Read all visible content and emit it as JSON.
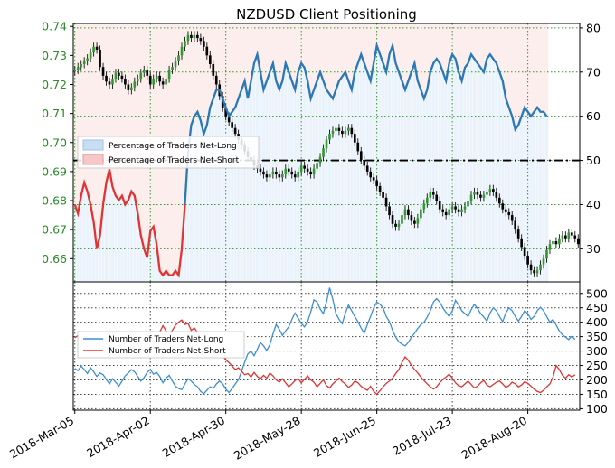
{
  "chart_data": [
    {
      "type": "candlestick+line",
      "title": "NZDUSD Client Positioning",
      "x_tick_labels": [
        "2018-Mar-05",
        "2018-Apr-02",
        "2018-Apr-30",
        "2018-May-28",
        "2018-Jun-25",
        "2018-Jul-23",
        "2018-Aug-20"
      ],
      "left_axis": {
        "label": "",
        "color": "#2a8a2a",
        "ticks": [
          "0.66",
          "0.67",
          "0.68",
          "0.69",
          "0.70",
          "0.71",
          "0.72",
          "0.73",
          "0.74"
        ],
        "ylim": [
          0.652,
          0.741
        ]
      },
      "right_axis": {
        "label": "",
        "ticks": [
          "30",
          "40",
          "50",
          "60",
          "70",
          "80"
        ],
        "ylim": [
          22.5,
          81
        ]
      },
      "legend": {
        "placement": "center-left",
        "entries": [
          "Percentage of Traders Net-Long",
          "Percentage of Traders Net-Short"
        ]
      },
      "reference_line": {
        "value": 50,
        "style": "dash-dot",
        "color": "#000000"
      },
      "price_close": [
        0.725,
        0.726,
        0.727,
        0.728,
        0.729,
        0.731,
        0.733,
        0.732,
        0.726,
        0.723,
        0.721,
        0.72,
        0.722,
        0.724,
        0.723,
        0.722,
        0.72,
        0.718,
        0.719,
        0.721,
        0.722,
        0.724,
        0.725,
        0.723,
        0.72,
        0.722,
        0.723,
        0.721,
        0.72,
        0.722,
        0.725,
        0.726,
        0.728,
        0.73,
        0.733,
        0.735,
        0.737,
        0.736,
        0.737,
        0.736,
        0.735,
        0.733,
        0.73,
        0.727,
        0.723,
        0.72,
        0.716,
        0.712,
        0.709,
        0.707,
        0.705,
        0.703,
        0.701,
        0.699,
        0.697,
        0.695,
        0.694,
        0.692,
        0.691,
        0.69,
        0.689,
        0.688,
        0.689,
        0.69,
        0.689,
        0.688,
        0.689,
        0.691,
        0.69,
        0.689,
        0.688,
        0.69,
        0.692,
        0.691,
        0.69,
        0.689,
        0.691,
        0.693,
        0.695,
        0.698,
        0.701,
        0.703,
        0.704,
        0.705,
        0.704,
        0.703,
        0.704,
        0.705,
        0.703,
        0.7,
        0.697,
        0.694,
        0.692,
        0.69,
        0.688,
        0.687,
        0.685,
        0.683,
        0.681,
        0.678,
        0.675,
        0.672,
        0.671,
        0.672,
        0.675,
        0.677,
        0.675,
        0.673,
        0.672,
        0.674,
        0.677,
        0.679,
        0.681,
        0.683,
        0.682,
        0.68,
        0.677,
        0.676,
        0.675,
        0.677,
        0.678,
        0.677,
        0.676,
        0.677,
        0.678,
        0.68,
        0.682,
        0.683,
        0.682,
        0.681,
        0.682,
        0.683,
        0.684,
        0.683,
        0.681,
        0.679,
        0.677,
        0.676,
        0.675,
        0.673,
        0.67,
        0.667,
        0.664,
        0.661,
        0.658,
        0.656,
        0.655,
        0.656,
        0.658,
        0.66,
        0.663,
        0.665,
        0.666,
        0.665,
        0.667,
        0.668,
        0.667,
        0.669,
        0.668,
        0.667,
        0.665
      ],
      "pct_net_long": [
        40,
        38,
        42,
        45,
        43,
        40,
        36,
        30,
        33,
        40,
        45,
        48,
        44,
        42,
        41,
        42,
        40,
        41,
        43,
        42,
        38,
        33,
        30,
        28,
        34,
        35,
        31,
        25,
        24,
        25,
        24,
        24,
        25,
        24,
        30,
        40,
        52,
        58,
        60,
        61,
        59,
        56,
        58,
        62,
        64,
        66,
        66,
        64,
        62,
        60,
        61,
        62,
        64,
        66,
        68,
        64,
        68,
        72,
        74,
        70,
        66,
        68,
        70,
        72,
        68,
        66,
        68,
        72,
        70,
        68,
        66,
        70,
        72,
        71,
        68,
        64,
        66,
        68,
        70,
        68,
        66,
        65,
        64,
        66,
        68,
        69,
        70,
        68,
        66,
        70,
        72,
        74,
        72,
        70,
        68,
        72,
        76,
        74,
        72,
        70,
        74,
        76,
        72,
        70,
        68,
        66,
        68,
        70,
        72,
        68,
        66,
        64,
        66,
        70,
        72,
        73,
        72,
        70,
        68,
        72,
        74,
        73,
        70,
        68,
        71,
        72,
        74,
        73,
        72,
        71,
        70,
        73,
        74,
        73,
        72,
        70,
        68,
        64,
        62,
        60,
        57,
        58,
        60,
        62,
        61,
        60,
        61,
        62,
        61,
        61,
        60
      ],
      "pct_net_short": [
        60,
        62,
        58,
        55,
        57,
        60,
        64,
        70,
        67,
        60,
        55,
        52,
        56,
        58,
        59,
        58,
        60,
        59,
        57,
        58,
        62,
        67,
        70,
        72,
        66,
        65,
        69,
        75,
        76,
        75,
        76,
        76,
        75,
        76,
        70,
        60,
        48,
        42,
        40,
        39,
        41,
        44,
        42,
        38,
        36,
        34,
        34,
        36,
        38,
        40,
        39,
        38,
        36,
        34,
        32,
        36,
        32,
        28,
        26,
        30,
        34,
        32,
        30,
        28,
        32,
        34,
        32,
        28,
        30,
        32,
        34,
        30,
        28,
        29,
        32,
        36,
        34,
        32,
        30,
        32,
        34,
        35,
        36,
        34,
        32,
        31,
        30,
        32,
        34,
        30,
        28,
        26,
        28,
        30,
        32,
        28,
        24,
        26,
        28,
        30,
        26,
        24,
        28,
        30,
        32,
        34,
        32,
        30,
        28,
        32,
        34,
        36,
        34,
        30,
        28,
        27,
        28,
        30,
        32,
        28,
        26,
        27,
        30,
        32,
        29,
        28,
        26,
        27,
        28,
        29,
        30,
        27,
        26,
        27,
        28,
        30,
        32,
        36,
        38,
        40,
        43,
        42,
        40,
        38,
        39,
        40,
        39,
        38,
        39,
        39,
        40
      ]
    },
    {
      "type": "line",
      "title": "",
      "right_axis": {
        "label": "",
        "ticks": [
          "100",
          "150",
          "200",
          "250",
          "300",
          "350",
          "400",
          "450",
          "500"
        ],
        "ylim": [
          95,
          540
        ]
      },
      "legend": {
        "placement": "center-left"
      },
      "series": [
        {
          "name": "Number of Traders Net-Long",
          "color": "#3b8fd6",
          "values": [
            240,
            232,
            248,
            236,
            222,
            242,
            228,
            212,
            224,
            218,
            202,
            186,
            204,
            192,
            178,
            196,
            214,
            224,
            236,
            228,
            212,
            196,
            208,
            226,
            236,
            220,
            226,
            212,
            190,
            206,
            216,
            196,
            178,
            170,
            166,
            186,
            204,
            196,
            184,
            176,
            160,
            152,
            164,
            176,
            170,
            186,
            196,
            186,
            168,
            156,
            170,
            186,
            200,
            230,
            262,
            290,
            300,
            284,
            306,
            330,
            318,
            302,
            322,
            360,
            392,
            376,
            354,
            370,
            384,
            410,
            432,
            414,
            396,
            384,
            402,
            436,
            478,
            470,
            446,
            430,
            470,
            520,
            480,
            430,
            410,
            395,
            432,
            460,
            440,
            420,
            402,
            380,
            362,
            392,
            420,
            450,
            470,
            462,
            450,
            420,
            402,
            372,
            348,
            332,
            324,
            318,
            330,
            348,
            362,
            378,
            392,
            400,
            418,
            440,
            470,
            482,
            470,
            450,
            434,
            420,
            440,
            476,
            460,
            440,
            430,
            420,
            444,
            462,
            448,
            430,
            418,
            404,
            432,
            450,
            440,
            420,
            402,
            432,
            450,
            440,
            420,
            404,
            420,
            440,
            430,
            410,
            420,
            440,
            452,
            440,
            420,
            400,
            410,
            390,
            370,
            356,
            348,
            340,
            352,
            340
          ]
        },
        {
          "name": "Number of Traders Net-Short",
          "color": "#e03434",
          "values": [
            346,
            354,
            338,
            326,
            332,
            350,
            340,
            318,
            304,
            320,
            332,
            318,
            296,
            308,
            330,
            342,
            326,
            304,
            292,
            302,
            318,
            334,
            344,
            326,
            312,
            322,
            340,
            366,
            388,
            370,
            356,
            372,
            390,
            400,
            408,
            392,
            396,
            372,
            380,
            364,
            356,
            362,
            346,
            336,
            330,
            310,
            292,
            282,
            270,
            260,
            248,
            236,
            242,
            230,
            218,
            222,
            210,
            226,
            212,
            204,
            216,
            206,
            224,
            214,
            200,
            192,
            204,
            190,
            176,
            186,
            198,
            204,
            190,
            202,
            214,
            200,
            192,
            176,
            188,
            200,
            180,
            172,
            186,
            196,
            206,
            194,
            186,
            174,
            182,
            196,
            190,
            178,
            170,
            164,
            178,
            160,
            150,
            162,
            176,
            188,
            196,
            206,
            222,
            236,
            260,
            280,
            268,
            250,
            236,
            224,
            210,
            198,
            186,
            176,
            168,
            176,
            190,
            202,
            210,
            220,
            206,
            190,
            180,
            176,
            186,
            196,
            184,
            172,
            178,
            190,
            198,
            182,
            176,
            184,
            192,
            196,
            186,
            174,
            180,
            192,
            186,
            176,
            182,
            194,
            188,
            178,
            168,
            160,
            156,
            164,
            176,
            186,
            210,
            250,
            236,
            216,
            206,
            218,
            210,
            218
          ]
        }
      ]
    }
  ]
}
